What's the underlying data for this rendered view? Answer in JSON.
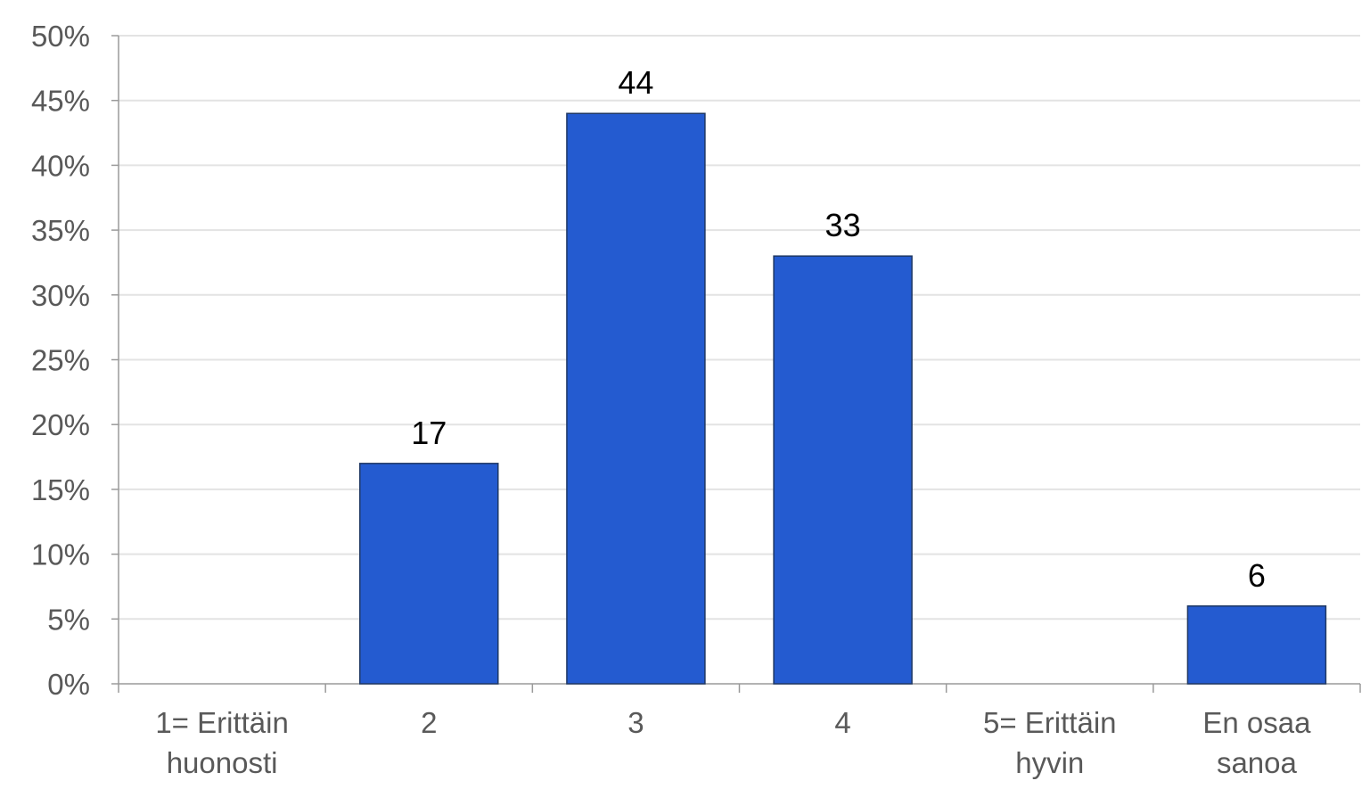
{
  "chart_data": {
    "type": "bar",
    "categories": [
      [
        "1= Erittäin",
        "huonosti"
      ],
      [
        "2"
      ],
      [
        "3"
      ],
      [
        "4"
      ],
      [
        "5= Erittäin",
        "hyvin"
      ],
      [
        "En osaa",
        "sanoa"
      ]
    ],
    "values": [
      0,
      17,
      44,
      33,
      0,
      6
    ],
    "data_labels": [
      "",
      "17",
      "44",
      "33",
      "",
      "6"
    ],
    "ylim": [
      0,
      50
    ],
    "yticks": [
      "0%",
      "5%",
      "10%",
      "15%",
      "20%",
      "25%",
      "30%",
      "35%",
      "40%",
      "45%",
      "50%"
    ],
    "title": "",
    "xlabel": "",
    "ylabel": "",
    "grid": true,
    "legend": "none",
    "bar_color": "#245bd0"
  }
}
